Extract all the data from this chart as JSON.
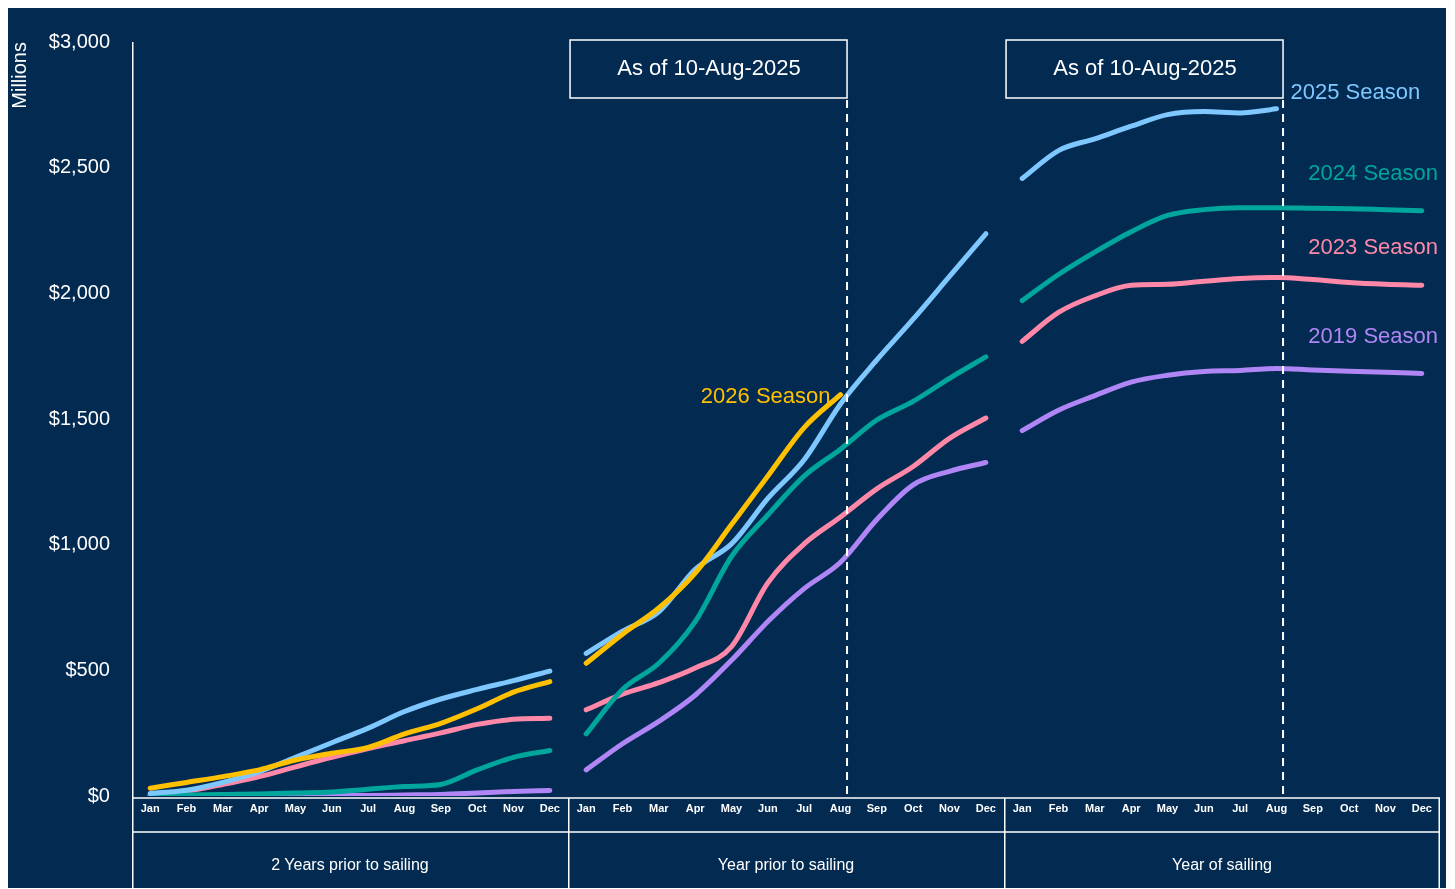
{
  "chart_data": [
    {
      "type": "line",
      "ylabel": "Millions",
      "xlabel": "2 Years prior to sailing",
      "categories": [
        "Jan",
        "Feb",
        "Mar",
        "Apr",
        "May",
        "Jun",
        "Jul",
        "Aug",
        "Sep",
        "Oct",
        "Nov",
        "Dec"
      ],
      "ylim": [
        0,
        3000
      ],
      "yticks": [
        {
          "value": 0,
          "label": "$0"
        },
        {
          "value": 500,
          "label": "$500"
        },
        {
          "value": 1000,
          "label": "$1,000"
        },
        {
          "value": 1500,
          "label": "$1,500"
        },
        {
          "value": 2000,
          "label": "$2,000"
        },
        {
          "value": 2500,
          "label": "$2,500"
        },
        {
          "value": 3000,
          "label": "$3,000"
        }
      ],
      "grid": false,
      "legend": false,
      "marker": "none",
      "line_style": "solid",
      "series": [
        {
          "color": "#ffc000",
          "values": [
            31,
            54,
            77,
            104,
            143,
            170,
            193,
            247,
            289,
            347,
            413,
            455
          ]
        },
        {
          "color": "#7fc8ff",
          "values": [
            10,
            23,
            54,
            96,
            154,
            212,
            270,
            336,
            386,
            424,
            459,
            497
          ]
        },
        {
          "color": "#00a59b",
          "values": [
            2,
            4,
            6,
            8,
            12,
            16,
            27,
            38,
            46,
            104,
            154,
            181
          ]
        },
        {
          "color": "#ff88a8",
          "values": [
            4,
            19,
            46,
            77,
            116,
            154,
            189,
            220,
            251,
            285,
            305,
            309
          ]
        },
        {
          "color": "#b085f5",
          "values": [
            0,
            0,
            0,
            0,
            0,
            1,
            2,
            4,
            6,
            12,
            18,
            22
          ]
        }
      ]
    },
    {
      "type": "line",
      "xlabel": "Year prior to sailing",
      "tick_labels": "x",
      "categories": [
        "Jan",
        "Feb",
        "Mar",
        "Apr",
        "May",
        "Jun",
        "Jul",
        "Aug",
        "Sep",
        "Oct",
        "Nov",
        "Dec"
      ],
      "ylim": [
        0,
        3000
      ],
      "grid": false,
      "legend": false,
      "marker": "none",
      "line_style": "solid",
      "ref_lines": [
        {
          "axis": "x",
          "value": "Aug",
          "label": "As of 10-Aug-2025",
          "color": "#ffffff",
          "line_style": "dashed"
        }
      ],
      "series": [
        {
          "name": "2026 Season",
          "color": "#ffc000",
          "values": [
            528,
            644,
            748,
            887,
            1080,
            1273,
            1466,
            1597,
            null,
            null,
            null,
            null
          ]
        },
        {
          "color": "#7fc8ff",
          "values": [
            567,
            656,
            733,
            902,
            1003,
            1184,
            1338,
            1560,
            1735,
            1897,
            2067,
            2237
          ]
        },
        {
          "color": "#00a59b",
          "values": [
            247,
            424,
            528,
            694,
            953,
            1118,
            1273,
            1380,
            1496,
            1570,
            1662,
            1747
          ]
        },
        {
          "color": "#ff88a8",
          "values": [
            343,
            405,
            451,
            509,
            594,
            848,
            1003,
            1110,
            1222,
            1311,
            1423,
            1504
          ]
        },
        {
          "color": "#b085f5",
          "values": [
            104,
            208,
            297,
            401,
            540,
            694,
            825,
            930,
            1100,
            1238,
            1292,
            1327
          ]
        }
      ]
    },
    {
      "type": "line",
      "xlabel": "Year of sailing",
      "tick_labels": "x",
      "categories": [
        "Jan",
        "Feb",
        "Mar",
        "Apr",
        "May",
        "Jun",
        "Jul",
        "Aug",
        "Sep",
        "Oct",
        "Nov",
        "Dec"
      ],
      "ylim": [
        0,
        3000
      ],
      "grid": false,
      "legend": false,
      "marker": "none",
      "line_style": "solid",
      "ref_lines": [
        {
          "axis": "x",
          "value": "Aug",
          "label": "As of 10-Aug-2025",
          "color": "#ffffff",
          "line_style": "dashed"
        }
      ],
      "series": [
        {
          "name": "2025 Season",
          "color": "#7fc8ff",
          "values": [
            2457,
            2568,
            2615,
            2665,
            2711,
            2723,
            2718,
            2734,
            null,
            null,
            null,
            null
          ]
        },
        {
          "name": "2024 Season",
          "color": "#00a59b",
          "values": [
            1971,
            2075,
            2164,
            2245,
            2310,
            2333,
            2341,
            2341,
            2339,
            2337,
            2333,
            2329
          ]
        },
        {
          "name": "2023 Season",
          "color": "#ff88a8",
          "values": [
            1809,
            1924,
            1990,
            2032,
            2036,
            2048,
            2059,
            2063,
            2055,
            2043,
            2036,
            2032
          ]
        },
        {
          "name": "2019 Season",
          "color": "#b085f5",
          "values": [
            1454,
            1535,
            1593,
            1647,
            1674,
            1689,
            1693,
            1701,
            1695,
            1690,
            1686,
            1681
          ]
        }
      ]
    }
  ]
}
